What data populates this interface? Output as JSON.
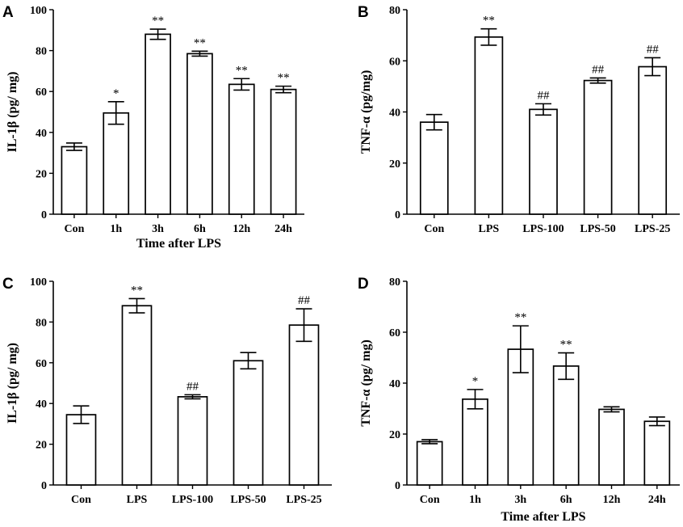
{
  "chart_data": [
    {
      "panel": "A",
      "type": "bar",
      "categories": [
        "Con",
        "1h",
        "3h",
        "6h",
        "12h",
        "24h"
      ],
      "values": [
        33,
        49.5,
        88,
        78.5,
        63.5,
        61
      ],
      "errors": [
        1.8,
        5.5,
        2.5,
        1.2,
        2.8,
        1.6
      ],
      "annotations": [
        "",
        "*",
        "**",
        "**",
        "**",
        "**"
      ],
      "ylabel": "IL-1β (pg/ mg)",
      "xlabel": "Time after LPS",
      "ylim": [
        0,
        100
      ],
      "yticks": [
        "0",
        "20",
        "40",
        "60",
        "80",
        "100"
      ],
      "ytick_values": [
        0,
        20,
        40,
        60,
        80,
        100
      ]
    },
    {
      "panel": "B",
      "type": "bar",
      "categories": [
        "Con",
        "LPS",
        "LPS-100",
        "LPS-50",
        "LPS-25"
      ],
      "values": [
        36,
        69.3,
        41,
        52.3,
        57.7
      ],
      "errors": [
        3,
        3.2,
        2.2,
        1,
        3.5
      ],
      "annotations": [
        "",
        "**",
        "##",
        "##",
        "##"
      ],
      "ylabel": "TNF-α (pg/mg)",
      "xlabel": "",
      "ylim": [
        0,
        80
      ],
      "yticks": [
        "0",
        "20",
        "40",
        "60",
        "80"
      ],
      "ytick_values": [
        0,
        20,
        40,
        60,
        80
      ]
    },
    {
      "panel": "C",
      "type": "bar",
      "categories": [
        "Con",
        "LPS",
        "LPS-100",
        "LPS-50",
        "LPS-25"
      ],
      "values": [
        34.5,
        88,
        43.3,
        61,
        78.5
      ],
      "errors": [
        4.3,
        3.5,
        1,
        4,
        8
      ],
      "annotations": [
        "",
        "**",
        "##",
        "",
        "##"
      ],
      "ylabel": "IL-1β (pg/ mg)",
      "xlabel": "",
      "ylim": [
        0,
        100
      ],
      "yticks": [
        "0",
        "20",
        "40",
        "60",
        "80",
        "100"
      ],
      "ytick_values": [
        0,
        20,
        40,
        60,
        80,
        100
      ]
    },
    {
      "panel": "D",
      "type": "bar",
      "categories": [
        "Con",
        "1h",
        "3h",
        "6h",
        "12h",
        "24h"
      ],
      "values": [
        17,
        33.7,
        53.3,
        46.7,
        29.7,
        25
      ],
      "errors": [
        0.8,
        3.8,
        9.2,
        5.2,
        1,
        1.7
      ],
      "annotations": [
        "",
        "*",
        "**",
        "**",
        "",
        ""
      ],
      "ylabel": "TNF-α (pg/ mg)",
      "xlabel": "Time after LPS",
      "ylim": [
        0,
        80
      ],
      "yticks": [
        "0",
        "20",
        "40",
        "60",
        "80"
      ],
      "ytick_values": [
        0,
        20,
        40,
        60,
        80
      ]
    }
  ]
}
